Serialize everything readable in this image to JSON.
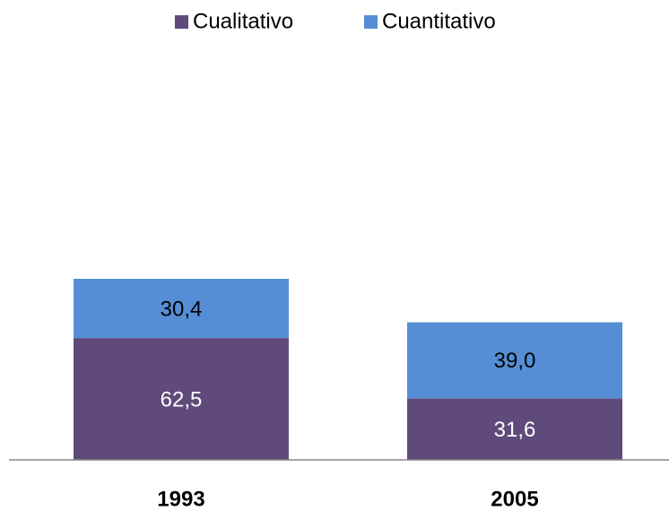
{
  "chart_data": {
    "type": "stacked_bar",
    "categories": [
      "1993",
      "2005"
    ],
    "series": [
      {
        "name": "Cualitativo",
        "color": "#604a7b",
        "values": [
          62.5,
          31.6
        ],
        "value_labels": [
          "62,5",
          "31,6"
        ]
      },
      {
        "name": "Cuantitativo",
        "color": "#558ed5",
        "values": [
          30.4,
          39.0
        ],
        "value_labels": [
          "30,4",
          "39,0"
        ]
      }
    ],
    "legend": "top"
  }
}
